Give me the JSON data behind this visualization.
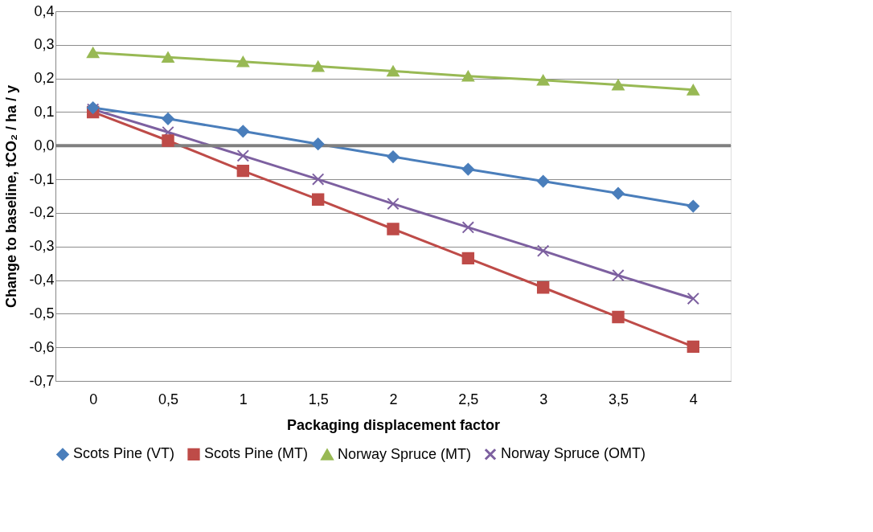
{
  "chart_data": {
    "type": "line",
    "xlabel": "Packaging displacement factor",
    "ylabel": "Change to baseline, tCO₂ / ha / y",
    "categories": [
      "0",
      "0,5",
      "1",
      "1,5",
      "2",
      "2,5",
      "3",
      "3,5",
      "4"
    ],
    "ylim": [
      -0.7,
      0.4
    ],
    "yticks": [
      {
        "value": -0.7,
        "label": "-0,7"
      },
      {
        "value": -0.6,
        "label": "-0,6"
      },
      {
        "value": -0.5,
        "label": "-0,5"
      },
      {
        "value": -0.4,
        "label": "-0,4"
      },
      {
        "value": -0.3,
        "label": "-0,3"
      },
      {
        "value": -0.2,
        "label": "-0,2"
      },
      {
        "value": -0.1,
        "label": "-0,1"
      },
      {
        "value": 0,
        "label": "0,0"
      },
      {
        "value": 0.1,
        "label": "0,1"
      },
      {
        "value": 0.2,
        "label": "0,2"
      },
      {
        "value": 0.3,
        "label": "0,3"
      },
      {
        "value": 0.4,
        "label": "0,4"
      }
    ],
    "grid": "y",
    "legend": "bottom",
    "ref_lines": [
      {
        "axis": "y",
        "value": 0,
        "color": "#808080"
      }
    ],
    "series": [
      {
        "name": "Scots Pine (VT)",
        "color": "#4a7ebb",
        "marker": "diamond",
        "values": [
          0.113,
          0.08,
          0.043,
          0.005,
          -0.033,
          -0.07,
          -0.106,
          -0.142,
          -0.18
        ]
      },
      {
        "name": "Scots Pine (MT)",
        "color": "#be4b48",
        "marker": "square",
        "values": [
          0.1,
          0.015,
          -0.075,
          -0.16,
          -0.248,
          -0.335,
          -0.422,
          -0.51,
          -0.598
        ]
      },
      {
        "name": "Norway Spruce (MT)",
        "color": "#98b954",
        "marker": "triangle",
        "values": [
          0.277,
          0.263,
          0.25,
          0.236,
          0.222,
          0.207,
          0.195,
          0.181,
          0.166
        ]
      },
      {
        "name": "Norway Spruce (OMT)",
        "color": "#7d60a0",
        "marker": "cross",
        "values": [
          0.108,
          0.04,
          -0.03,
          -0.1,
          -0.173,
          -0.243,
          -0.313,
          -0.386,
          -0.455
        ]
      }
    ]
  }
}
